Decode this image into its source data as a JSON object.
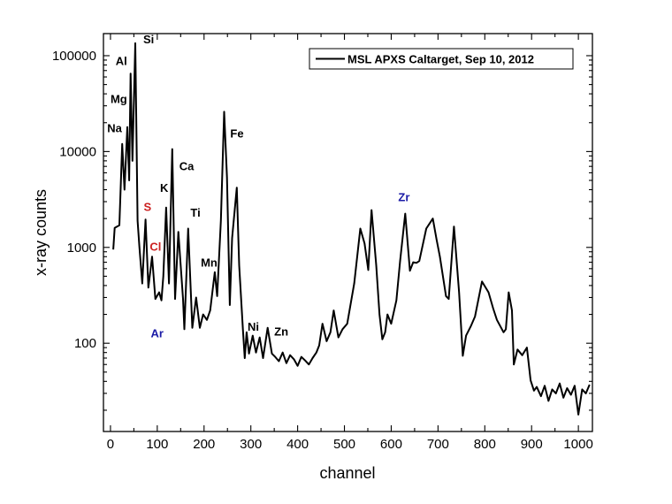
{
  "chart_data": {
    "type": "line",
    "title": "",
    "xlabel": "channel",
    "ylabel": "x-ray counts",
    "xlim": [
      -15,
      1030
    ],
    "ylim": [
      12,
      170000
    ],
    "yscale": "log",
    "xticks": [
      0,
      100,
      200,
      300,
      400,
      500,
      600,
      700,
      800,
      900,
      1000
    ],
    "xtick_labels": [
      "0",
      "100",
      "200",
      "300",
      "400",
      "500",
      "600",
      "700",
      "800",
      "900",
      "1000"
    ],
    "yticks": [
      100,
      1000,
      10000,
      100000
    ],
    "ytick_labels": [
      "100",
      "1000",
      "10000",
      "100000"
    ],
    "grid": false,
    "legend": {
      "position": "top-right",
      "entries": [
        "MSL APXS Caltarget, Sep 10, 2012"
      ]
    },
    "series": [
      {
        "name": "MSL APXS Caltarget, Sep 10, 2012",
        "color": "#000000",
        "x": [
          6,
          9,
          19,
          25,
          30,
          36,
          40,
          43,
          47,
          53,
          58,
          62,
          68,
          75,
          81,
          89,
          96,
          104,
          109,
          113,
          119,
          125,
          132,
          138,
          145,
          155,
          158,
          166,
          175,
          183,
          191,
          198,
          206,
          213,
          223,
          228,
          236,
          243,
          249,
          255,
          260,
          270,
          275,
          283,
          287,
          291,
          296,
          304,
          311,
          319,
          326,
          336,
          345,
          352,
          360,
          368,
          376,
          384,
          392,
          400,
          408,
          416,
          424,
          432,
          440,
          446,
          453,
          462,
          470,
          477,
          487,
          496,
          506,
          521,
          534,
          543,
          551,
          558,
          568,
          575,
          581,
          587,
          592,
          600,
          611,
          619,
          630,
          640,
          647,
          654,
          660,
          675,
          689,
          697,
          704,
          717,
          723,
          734,
          745,
          753,
          760,
          770,
          779,
          794,
          808,
          818,
          826,
          840,
          845,
          851,
          858,
          862,
          870,
          880,
          890,
          898,
          905,
          911,
          920,
          928,
          936,
          944,
          952,
          960,
          968,
          976,
          984,
          992,
          1000,
          1008,
          1016,
          1024
        ],
        "y": [
          950,
          1600,
          1700,
          12000,
          4000,
          18000,
          5000,
          65000,
          8000,
          135000,
          1900,
          1000,
          420,
          1950,
          380,
          800,
          290,
          340,
          280,
          500,
          2600,
          420,
          10600,
          290,
          1450,
          290,
          140,
          1570,
          145,
          300,
          145,
          200,
          175,
          220,
          550,
          310,
          1900,
          26000,
          5400,
          250,
          1250,
          4200,
          650,
          140,
          70,
          130,
          78,
          120,
          80,
          115,
          70,
          145,
          78,
          72,
          65,
          80,
          62,
          75,
          68,
          58,
          72,
          66,
          60,
          70,
          80,
          95,
          160,
          105,
          130,
          220,
          115,
          140,
          160,
          420,
          1570,
          1100,
          580,
          2450,
          650,
          200,
          110,
          130,
          200,
          160,
          280,
          720,
          2250,
          570,
          700,
          690,
          720,
          1570,
          2000,
          1200,
          800,
          310,
          290,
          1650,
          340,
          74,
          120,
          150,
          190,
          440,
          340,
          230,
          175,
          130,
          140,
          340,
          220,
          60,
          86,
          75,
          90,
          41,
          32,
          35,
          28,
          36,
          25,
          33,
          30,
          38,
          27,
          34,
          29,
          36,
          18,
          33,
          30,
          37
        ]
      }
    ],
    "annotations": [
      {
        "text": "Si",
        "channel": 70,
        "counts": 135000,
        "color": "#000000"
      },
      {
        "text": "Al",
        "channel": 11,
        "counts": 80000,
        "color": "#000000"
      },
      {
        "text": "Mg",
        "channel": 0,
        "counts": 32000,
        "color": "#000000"
      },
      {
        "text": "Na",
        "channel": -7,
        "counts": 16000,
        "color": "#000000"
      },
      {
        "text": "Fe",
        "channel": 256,
        "counts": 14000,
        "color": "#000000"
      },
      {
        "text": "Ca",
        "channel": 147,
        "counts": 6400,
        "color": "#000000"
      },
      {
        "text": "K",
        "channel": 106,
        "counts": 3800,
        "color": "#000000"
      },
      {
        "text": "S",
        "channel": 71,
        "counts": 2400,
        "color": "#cc2222"
      },
      {
        "text": "Ti",
        "channel": 171,
        "counts": 2100,
        "color": "#000000"
      },
      {
        "text": "Cl",
        "channel": 84,
        "counts": 920,
        "color": "#cc2222"
      },
      {
        "text": "Mn",
        "channel": 193,
        "counts": 630,
        "color": "#000000"
      },
      {
        "text": "Ar",
        "channel": 86,
        "counts": 115,
        "color": "#1a1aa6"
      },
      {
        "text": "Ni",
        "channel": 293,
        "counts": 135,
        "color": "#000000"
      },
      {
        "text": "Zn",
        "channel": 350,
        "counts": 120,
        "color": "#000000"
      },
      {
        "text": "Zr",
        "channel": 615,
        "counts": 3050,
        "color": "#1a1aa6"
      }
    ]
  }
}
